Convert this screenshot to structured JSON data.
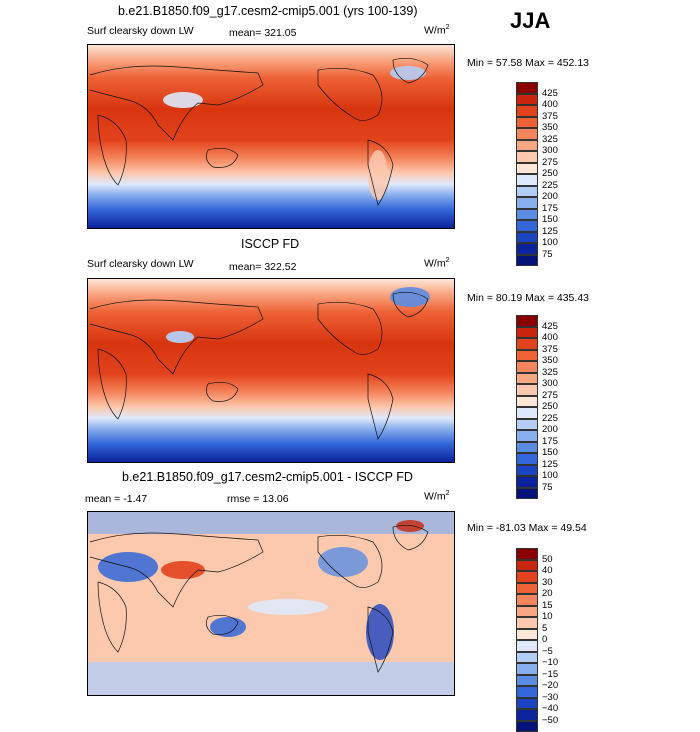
{
  "season": "JJA",
  "panels": [
    {
      "title": "b.e21.B1850.f09_g17.cesm2-cmip5.001 (yrs 100-139)",
      "left_label": "Surf clearsky down LW",
      "mean_label": "mean= 321.05",
      "units": "W/m",
      "units_sup": "2",
      "minmax": "Min =  57.58 Max = 452.13"
    },
    {
      "title": "ISCCP FD",
      "left_label": "Surf clearsky down LW",
      "mean_label": "mean= 322.52",
      "units": "W/m",
      "units_sup": "2",
      "minmax": "Min =  80.19 Max = 435.43"
    },
    {
      "title": "b.e21.B1850.f09_g17.cesm2-cmip5.001 - ISCCP FD",
      "left_label": "mean =   -1.47",
      "mean_label": "rmse =   13.06",
      "units": "W/m",
      "units_sup": "2",
      "minmax": "Min = -81.03 Max =  49.54"
    }
  ],
  "colorbar_abs": {
    "levels": [
      "425",
      "400",
      "375",
      "350",
      "325",
      "300",
      "275",
      "250",
      "225",
      "200",
      "175",
      "150",
      "125",
      "100",
      "75"
    ],
    "colors": [
      "#8a0000",
      "#c8250c",
      "#e2431c",
      "#ee6236",
      "#f5855c",
      "#f9a783",
      "#fcc8ae",
      "#fde6d8",
      "#dfe9fb",
      "#b4cdf5",
      "#88aeed",
      "#5a8ce3",
      "#3366d8",
      "#1a44c2",
      "#0b239b",
      "#04127a"
    ]
  },
  "colorbar_diff": {
    "levels": [
      "50",
      "40",
      "30",
      "20",
      "15",
      "10",
      "5",
      "0",
      "−5",
      "−10",
      "−15",
      "−20",
      "−30",
      "−40",
      "−50"
    ],
    "colors": [
      "#8a0000",
      "#c8250c",
      "#e2431c",
      "#ee6236",
      "#f5855c",
      "#f9a783",
      "#fcc8ae",
      "#fde6d8",
      "#dfe9fb",
      "#b4cdf5",
      "#88aeed",
      "#5a8ce3",
      "#3366d8",
      "#1a44c2",
      "#0b239b",
      "#04127a"
    ]
  },
  "chart_data": [
    {
      "type": "heatmap",
      "title": "b.e21.B1850.f09_g17.cesm2-cmip5.001 (yrs 100-139)",
      "variable": "Surf clearsky down LW",
      "units": "W/m2",
      "mean": 321.05,
      "min": 57.58,
      "max": 452.13,
      "contour_levels": [
        75,
        100,
        125,
        150,
        175,
        200,
        225,
        250,
        275,
        300,
        325,
        350,
        375,
        400,
        425
      ]
    },
    {
      "type": "heatmap",
      "title": "ISCCP FD",
      "variable": "Surf clearsky down LW",
      "units": "W/m2",
      "mean": 322.52,
      "min": 80.19,
      "max": 435.43,
      "contour_levels": [
        75,
        100,
        125,
        150,
        175,
        200,
        225,
        250,
        275,
        300,
        325,
        350,
        375,
        400,
        425
      ]
    },
    {
      "type": "heatmap",
      "title": "b.e21.B1850.f09_g17.cesm2-cmip5.001 - ISCCP FD",
      "units": "W/m2",
      "mean": -1.47,
      "rmse": 13.06,
      "min": -81.03,
      "max": 49.54,
      "contour_levels": [
        -50,
        -40,
        -30,
        -20,
        -15,
        -10,
        -5,
        0,
        5,
        10,
        15,
        20,
        30,
        40,
        50
      ]
    }
  ]
}
